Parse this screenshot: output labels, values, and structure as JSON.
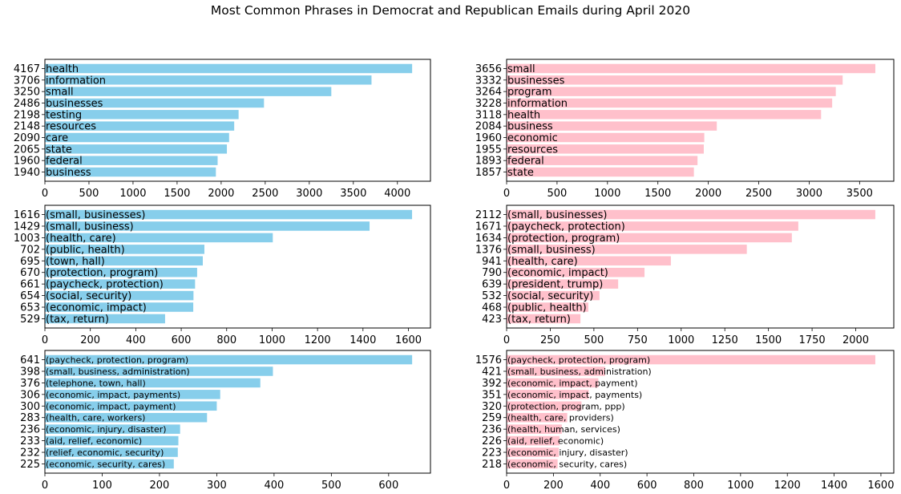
{
  "title": "Most Common Phrases in Democrat and Republican Emails during April 2020",
  "colors": {
    "democrat": "#87ceeb",
    "republican": "#ffc0cb"
  },
  "chart_data": [
    {
      "type": "bar",
      "orientation": "horizontal",
      "party": "Democrat",
      "ngram": 1,
      "categories": [
        "health",
        "information",
        "small",
        "businesses",
        "testing",
        "resources",
        "care",
        "state",
        "federal",
        "business"
      ],
      "values": [
        4167,
        3706,
        3250,
        2486,
        2198,
        2148,
        2090,
        2065,
        1960,
        1940
      ],
      "xticks": [
        0,
        500,
        1000,
        1500,
        2000,
        2500,
        3000,
        3500,
        4000
      ],
      "xlim": [
        0,
        4375
      ],
      "grid": false
    },
    {
      "type": "bar",
      "orientation": "horizontal",
      "party": "Republican",
      "ngram": 1,
      "categories": [
        "small",
        "businesses",
        "program",
        "information",
        "health",
        "business",
        "economic",
        "resources",
        "federal",
        "state"
      ],
      "values": [
        3656,
        3332,
        3264,
        3228,
        3118,
        2084,
        1960,
        1955,
        1893,
        1857
      ],
      "xticks": [
        0,
        500,
        1000,
        1500,
        2000,
        2500,
        3000,
        3500
      ],
      "xlim": [
        0,
        3839
      ],
      "grid": false
    },
    {
      "type": "bar",
      "orientation": "horizontal",
      "party": "Democrat",
      "ngram": 2,
      "categories": [
        "(small, businesses)",
        "(small, business)",
        "(health, care)",
        "(public, health)",
        "(town, hall)",
        "(protection, program)",
        "(paycheck, protection)",
        "(social, security)",
        "(economic, impact)",
        "(tax, return)"
      ],
      "values": [
        1616,
        1429,
        1003,
        702,
        695,
        670,
        661,
        654,
        653,
        529
      ],
      "xticks": [
        0,
        200,
        400,
        600,
        800,
        1000,
        1200,
        1400,
        1600
      ],
      "xlim": [
        0,
        1697
      ],
      "grid": false
    },
    {
      "type": "bar",
      "orientation": "horizontal",
      "party": "Republican",
      "ngram": 2,
      "categories": [
        "(small, businesses)",
        "(paycheck, protection)",
        "(protection, program)",
        "(small, business)",
        "(health, care)",
        "(economic, impact)",
        "(president, trump)",
        "(social, security)",
        "(public, health)",
        "(tax, return)"
      ],
      "values": [
        2112,
        1671,
        1634,
        1376,
        941,
        790,
        639,
        532,
        468,
        423
      ],
      "xticks": [
        0,
        250,
        500,
        750,
        1000,
        1250,
        1500,
        1750,
        2000
      ],
      "xlim": [
        0,
        2218
      ],
      "grid": false
    },
    {
      "type": "bar",
      "orientation": "horizontal",
      "party": "Democrat",
      "ngram": 3,
      "categories": [
        "(paycheck, protection, program)",
        "(small, business, administration)",
        "(telephone, town, hall)",
        "(economic, impact, payments)",
        "(economic, impact, payment)",
        "(health, care, workers)",
        "(economic, injury, disaster)",
        "(aid, relief, economic)",
        "(relief, economic, security)",
        "(economic, security, cares)"
      ],
      "values": [
        641,
        398,
        376,
        306,
        300,
        283,
        236,
        233,
        232,
        225
      ],
      "xticks": [
        0,
        100,
        200,
        300,
        400,
        500,
        600
      ],
      "xlim": [
        0,
        673
      ],
      "grid": false
    },
    {
      "type": "bar",
      "orientation": "horizontal",
      "party": "Republican",
      "ngram": 3,
      "categories": [
        "(paycheck, protection, program)",
        "(small, business, administration)",
        "(economic, impact, payment)",
        "(economic, impact, payments)",
        "(protection, program, ppp)",
        "(health, care, providers)",
        "(health, human, services)",
        "(aid, relief, economic)",
        "(economic, injury, disaster)",
        "(economic, security, cares)"
      ],
      "values": [
        1576,
        421,
        392,
        351,
        320,
        259,
        236,
        226,
        223,
        218
      ],
      "xticks": [
        0,
        200,
        400,
        600,
        800,
        1000,
        1200,
        1400,
        1600
      ],
      "xlim": [
        0,
        1655
      ],
      "grid": false
    }
  ]
}
